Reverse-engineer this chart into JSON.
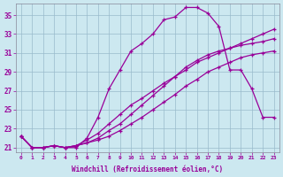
{
  "xlabel": "Windchill (Refroidissement éolien,°C)",
  "bg_color": "#cce8f0",
  "grid_color": "#99bbcc",
  "line_color": "#990099",
  "xlim": [
    -0.5,
    23.5
  ],
  "ylim": [
    20.5,
    36.2
  ],
  "xticks": [
    0,
    1,
    2,
    3,
    4,
    5,
    6,
    7,
    8,
    9,
    10,
    11,
    12,
    13,
    14,
    15,
    16,
    17,
    18,
    19,
    20,
    21,
    22,
    23
  ],
  "yticks": [
    21,
    23,
    25,
    27,
    29,
    31,
    33,
    35
  ],
  "series": [
    {
      "x": [
        0,
        1,
        2,
        3,
        4,
        5,
        6,
        7,
        8,
        9,
        10,
        11,
        12,
        13,
        14,
        15,
        16,
        17,
        18,
        19,
        20,
        21,
        22,
        23
      ],
      "y": [
        22.2,
        21.0,
        21.0,
        21.2,
        21.0,
        21.0,
        22.0,
        24.2,
        27.2,
        29.2,
        31.2,
        32.0,
        33.0,
        34.5,
        34.8,
        35.8,
        35.8,
        35.2,
        33.8,
        29.2,
        29.2,
        27.2,
        24.2,
        24.2
      ],
      "marker": true
    },
    {
      "x": [
        0,
        1,
        2,
        3,
        4,
        5,
        6,
        7,
        8,
        9,
        10,
        11,
        12,
        13,
        14,
        15,
        16,
        17,
        18,
        19,
        20,
        21,
        22,
        23
      ],
      "y": [
        22.2,
        21.0,
        21.0,
        21.2,
        21.0,
        21.2,
        21.5,
        21.8,
        22.2,
        22.8,
        23.5,
        24.2,
        25.0,
        25.8,
        26.6,
        27.5,
        28.2,
        29.0,
        29.5,
        30.0,
        30.5,
        30.8,
        31.0,
        31.2
      ],
      "marker": true
    },
    {
      "x": [
        0,
        1,
        2,
        3,
        4,
        5,
        6,
        7,
        8,
        9,
        10,
        11,
        12,
        13,
        14,
        15,
        16,
        17,
        18,
        19,
        20,
        21,
        22,
        23
      ],
      "y": [
        22.2,
        21.0,
        21.0,
        21.2,
        21.0,
        21.2,
        21.5,
        22.0,
        22.8,
        23.5,
        24.5,
        25.5,
        26.5,
        27.5,
        28.5,
        29.5,
        30.2,
        30.8,
        31.2,
        31.5,
        31.8,
        32.0,
        32.2,
        32.5
      ],
      "marker": true
    },
    {
      "x": [
        0,
        1,
        2,
        3,
        4,
        5,
        6,
        7,
        8,
        9,
        10,
        11,
        12,
        13,
        14,
        15,
        16,
        17,
        18,
        19,
        20,
        21,
        22,
        23
      ],
      "y": [
        22.2,
        21.0,
        21.0,
        21.2,
        21.0,
        21.2,
        21.8,
        22.5,
        23.5,
        24.5,
        25.5,
        26.2,
        27.0,
        27.8,
        28.5,
        29.2,
        30.0,
        30.5,
        31.0,
        31.5,
        32.0,
        32.5,
        33.0,
        33.5
      ],
      "marker": true
    }
  ]
}
